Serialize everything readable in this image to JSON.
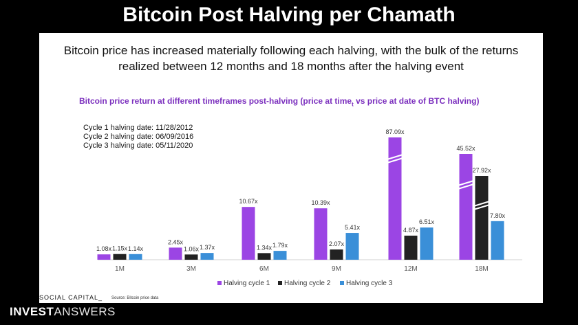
{
  "banner_title": "Bitcoin Post Halving per Chamath",
  "headline_line1": "Bitcoin price has increased materially following each halving, with the bulk of the returns",
  "headline_line2": "realized between 12 months and 18 months after the halving event",
  "chart_title_pre": "Bitcoin price return at different timeframes post-halving (price at time",
  "chart_title_sub": "t",
  "chart_title_post": " vs price at date of BTC halving)",
  "halving_dates": [
    "Cycle 1 halving date: 11/28/2012",
    "Cycle 2 halving date: 06/09/2016",
    "Cycle 3 halving date: 05/11/2020"
  ],
  "social_capital": "SOCIAL CAPITAL_",
  "source": "Source: Bitcoin price data",
  "brand_bold": "INVEST",
  "brand_light": "ANSWERS",
  "colors": {
    "cycle1": "#9b45e4",
    "cycle2": "#222222",
    "cycle3": "#3a8fd8",
    "title": "#7b2fbe"
  },
  "chart_data": {
    "type": "bar",
    "categories": [
      "1M",
      "3M",
      "6M",
      "9M",
      "12M",
      "18M"
    ],
    "series": [
      {
        "name": "Halving cycle 1",
        "values": [
          1.08,
          2.45,
          10.67,
          10.39,
          87.09,
          45.52
        ],
        "labels": [
          "1.08x",
          "2.45x",
          "10.67x",
          "10.39x",
          "87.09x",
          "45.52x"
        ]
      },
      {
        "name": "Halving cycle 2",
        "values": [
          1.15,
          1.06,
          1.34,
          2.07,
          4.87,
          27.92
        ],
        "labels": [
          "1.15x",
          "1.06x",
          "1.34x",
          "2.07x",
          "4.87x",
          "27.92x"
        ]
      },
      {
        "name": "Halving cycle 3",
        "values": [
          1.14,
          1.37,
          1.79,
          5.41,
          6.51,
          7.8
        ],
        "labels": [
          "1.14x",
          "1.37x",
          "1.79x",
          "5.41x",
          "6.51x",
          "7.80x"
        ]
      }
    ],
    "axis_breaks": [
      "12M Halving cycle 1",
      "18M Halving cycle 1",
      "18M Halving cycle 2"
    ],
    "legend_position": "bottom"
  }
}
